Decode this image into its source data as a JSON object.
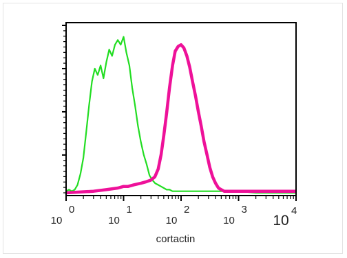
{
  "chart_data": {
    "type": "line",
    "xlabel": "cortactin",
    "ylabel": "",
    "x_scale": "log",
    "xlim": [
      1,
      10000
    ],
    "ylim": [
      0,
      1
    ],
    "grid": false,
    "x_tick_labels": [
      {
        "base": "10",
        "exp": "0",
        "value": 1
      },
      {
        "base": "10",
        "exp": "1",
        "value": 10
      },
      {
        "base": "10",
        "exp": "2",
        "value": 100
      },
      {
        "base": "10",
        "exp": "3",
        "value": 1000
      },
      {
        "base": "10",
        "exp": "4",
        "value": 10000
      }
    ],
    "series": [
      {
        "color": "#22dd22",
        "x": [
          1,
          1.12,
          1.26,
          1.41,
          1.58,
          1.78,
          2,
          2.24,
          2.51,
          2.82,
          3.16,
          3.55,
          3.98,
          4.47,
          5.01,
          5.62,
          6.31,
          7.08,
          7.94,
          8.91,
          10,
          11.2,
          12.6,
          14.1,
          15.8,
          17.8,
          20,
          22.4,
          25.1,
          28.2,
          31.6,
          35.5,
          39.8,
          44.7,
          50.1,
          56.2,
          63.1,
          70.8,
          79.4,
          89.1,
          100,
          200,
          500,
          1000,
          2000,
          10000
        ],
        "values": [
          0.01,
          0.02,
          0.01,
          0.02,
          0.05,
          0.12,
          0.22,
          0.38,
          0.55,
          0.7,
          0.78,
          0.74,
          0.8,
          0.72,
          0.82,
          0.9,
          0.86,
          0.93,
          0.96,
          0.93,
          0.98,
          0.88,
          0.8,
          0.66,
          0.55,
          0.42,
          0.32,
          0.24,
          0.18,
          0.11,
          0.08,
          0.06,
          0.05,
          0.04,
          0.03,
          0.02,
          0.02,
          0.01,
          0.01,
          0.01,
          0.01,
          0.01,
          0.01,
          0.01,
          0.0,
          0.0
        ]
      },
      {
        "color": "#ee1199",
        "x": [
          1,
          3,
          5,
          8,
          10,
          12,
          15,
          20,
          25,
          30,
          35,
          40,
          45,
          50,
          56,
          63,
          71,
          79,
          89,
          100,
          112,
          126,
          141,
          158,
          178,
          200,
          224,
          251,
          282,
          316,
          355,
          398,
          447,
          501,
          562,
          631,
          708,
          794,
          891,
          1000,
          2000,
          10000
        ],
        "values": [
          0.0,
          0.01,
          0.02,
          0.03,
          0.04,
          0.04,
          0.05,
          0.06,
          0.07,
          0.08,
          0.1,
          0.15,
          0.24,
          0.36,
          0.5,
          0.66,
          0.8,
          0.89,
          0.92,
          0.93,
          0.91,
          0.86,
          0.79,
          0.7,
          0.61,
          0.51,
          0.42,
          0.32,
          0.24,
          0.16,
          0.1,
          0.06,
          0.03,
          0.02,
          0.01,
          0.01,
          0.01,
          0.01,
          0.01,
          0.01,
          0.01,
          0.01
        ]
      }
    ]
  }
}
